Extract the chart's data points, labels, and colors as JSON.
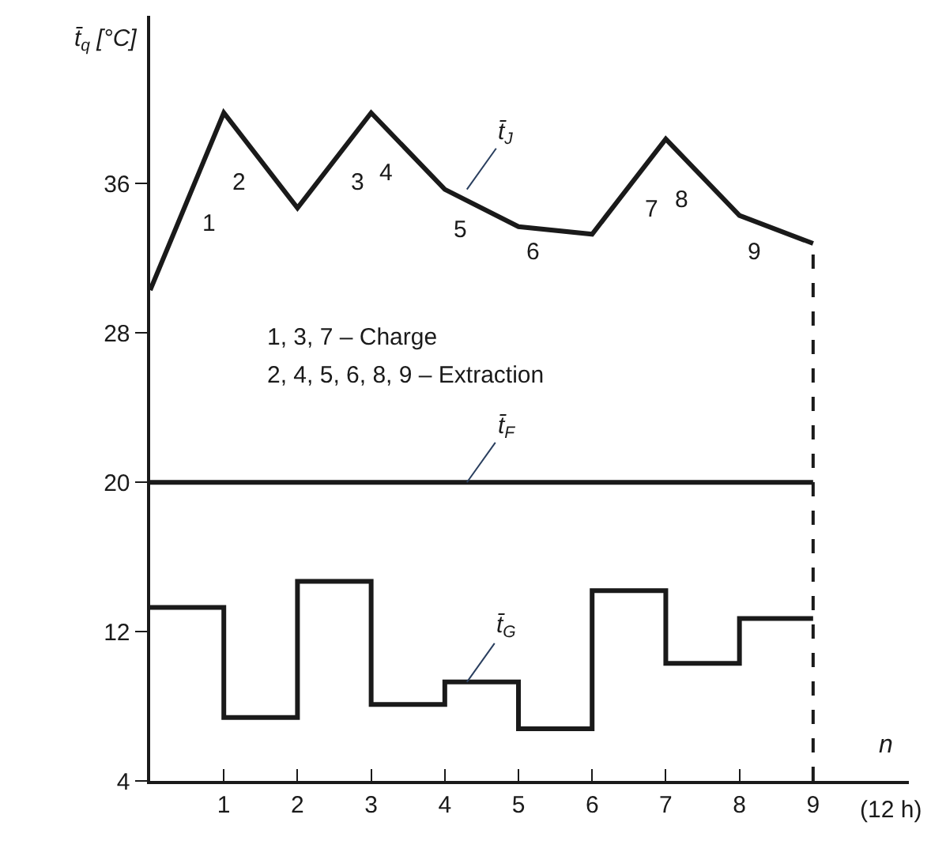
{
  "chart_data": {
    "type": "line",
    "ylabel": "t̄$_{q}$ [°C]",
    "xlabel": "(12 h)",
    "x": [
      0,
      1,
      2,
      3,
      4,
      5,
      6,
      7,
      8,
      9
    ],
    "series": [
      {
        "name": "t̄$_{J}$",
        "color": "#1a1a1a",
        "values": [
          30.3,
          39.8,
          34.7,
          39.8,
          35.7,
          33.7,
          33.3,
          38.4,
          34.3,
          32.8
        ]
      },
      {
        "name": "t̄$_{F}$",
        "color": "#1a1a1a",
        "values": [
          20,
          20,
          20,
          20,
          20,
          20,
          20,
          20,
          20,
          20
        ]
      },
      {
        "name": "t̄$_{G}$",
        "type": "step",
        "color": "#1a1a1a",
        "values": [
          13.3,
          7.4,
          14.7,
          8.1,
          9.3,
          6.8,
          14.2,
          10.3,
          12.7,
          12.7
        ]
      }
    ],
    "xlim": [
      0,
      10.3
    ],
    "ylim": [
      4,
      45
    ],
    "xticks": [
      1,
      2,
      3,
      4,
      5,
      6,
      7,
      8,
      9
    ],
    "yticks": [
      4,
      12,
      20,
      28,
      36
    ],
    "ref_lines": [
      {
        "axis": "x",
        "value": 9,
        "line_style": "dashed",
        "color": "#1a1a1a"
      }
    ],
    "annotations": [
      "1",
      "2",
      "3",
      "4",
      "5",
      "6",
      "7",
      "8",
      "9",
      "1, 3, 7 – Charge",
      "2, 4, 5, 6, 8, 9 – Extraction",
      "n"
    ],
    "marker": "none",
    "line_style": "solid"
  }
}
